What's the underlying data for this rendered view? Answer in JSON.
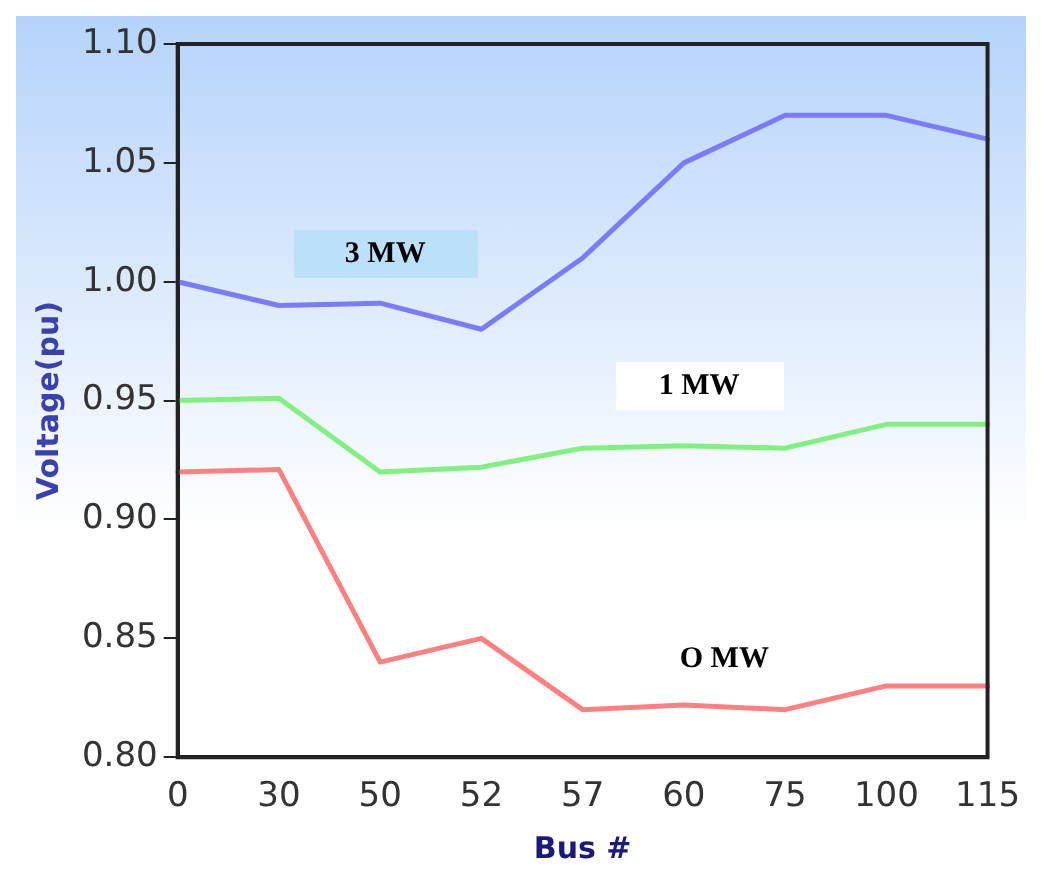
{
  "chart_data": {
    "type": "line",
    "xlabel": "Bus #",
    "ylabel": "Voltage(pu)",
    "categories": [
      "0",
      "30",
      "50",
      "52",
      "57",
      "60",
      "75",
      "100",
      "115"
    ],
    "series": [
      {
        "name": "3 MW",
        "color": "#7b7bff",
        "values": [
          1.0,
          0.99,
          0.991,
          0.98,
          1.01,
          1.05,
          1.07,
          1.07,
          1.06
        ]
      },
      {
        "name": "1 MW",
        "color": "#80f080",
        "values": [
          0.95,
          0.951,
          0.92,
          0.922,
          0.93,
          0.931,
          0.93,
          0.94,
          0.94
        ]
      },
      {
        "name": "O MW",
        "color": "#ff8080",
        "values": [
          0.92,
          0.921,
          0.84,
          0.85,
          0.82,
          0.822,
          0.82,
          0.83,
          0.83
        ]
      }
    ],
    "ylim": [
      0.8,
      1.1
    ],
    "yticks": [
      {
        "value": 0.8,
        "label": "0.80"
      },
      {
        "value": 0.85,
        "label": "0.85"
      },
      {
        "value": 0.9,
        "label": "0.90"
      },
      {
        "value": 0.95,
        "label": "0.95"
      },
      {
        "value": 1.0,
        "label": "1.00"
      },
      {
        "value": 1.05,
        "label": "1.05"
      },
      {
        "value": 1.1,
        "label": "1.10"
      }
    ],
    "grid": false,
    "legend": false,
    "marker": "none",
    "line_style": "solid"
  }
}
